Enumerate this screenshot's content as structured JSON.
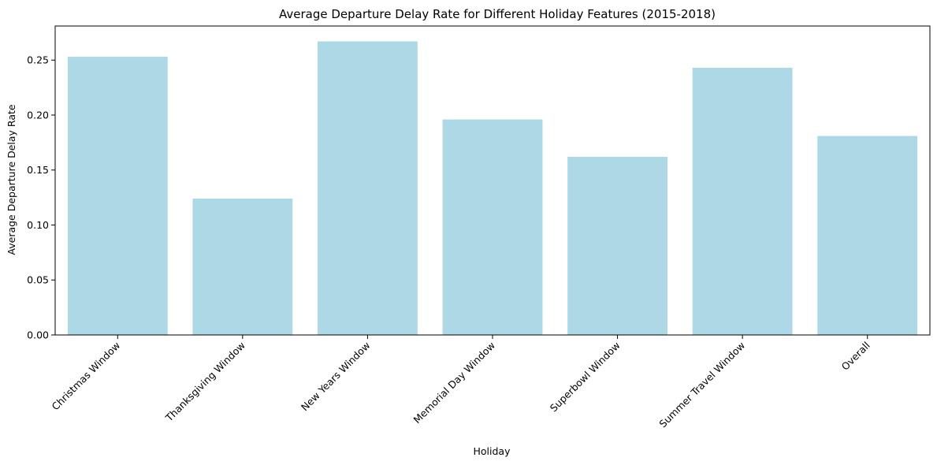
{
  "chart_data": {
    "type": "bar",
    "title": "Average Departure Delay Rate for Different Holiday Features (2015-2018)",
    "xlabel": "Holiday",
    "ylabel": "Average Departure Delay Rate",
    "categories": [
      "Christmas Window",
      "Thanksgiving Window",
      "New Years Window",
      "Memorial Day Window",
      "Superbowl Window",
      "Summer Travel Window",
      "Overall"
    ],
    "values": [
      0.253,
      0.124,
      0.267,
      0.196,
      0.162,
      0.243,
      0.181
    ],
    "ylim": [
      0,
      0.281
    ],
    "yticks": [
      0.0,
      0.05,
      0.1,
      0.15,
      0.2,
      0.25
    ],
    "ytick_labels": [
      "0.00",
      "0.05",
      "0.10",
      "0.15",
      "0.20",
      "0.25"
    ],
    "bar_color": "#add8e6",
    "grid": false,
    "legend": false
  }
}
